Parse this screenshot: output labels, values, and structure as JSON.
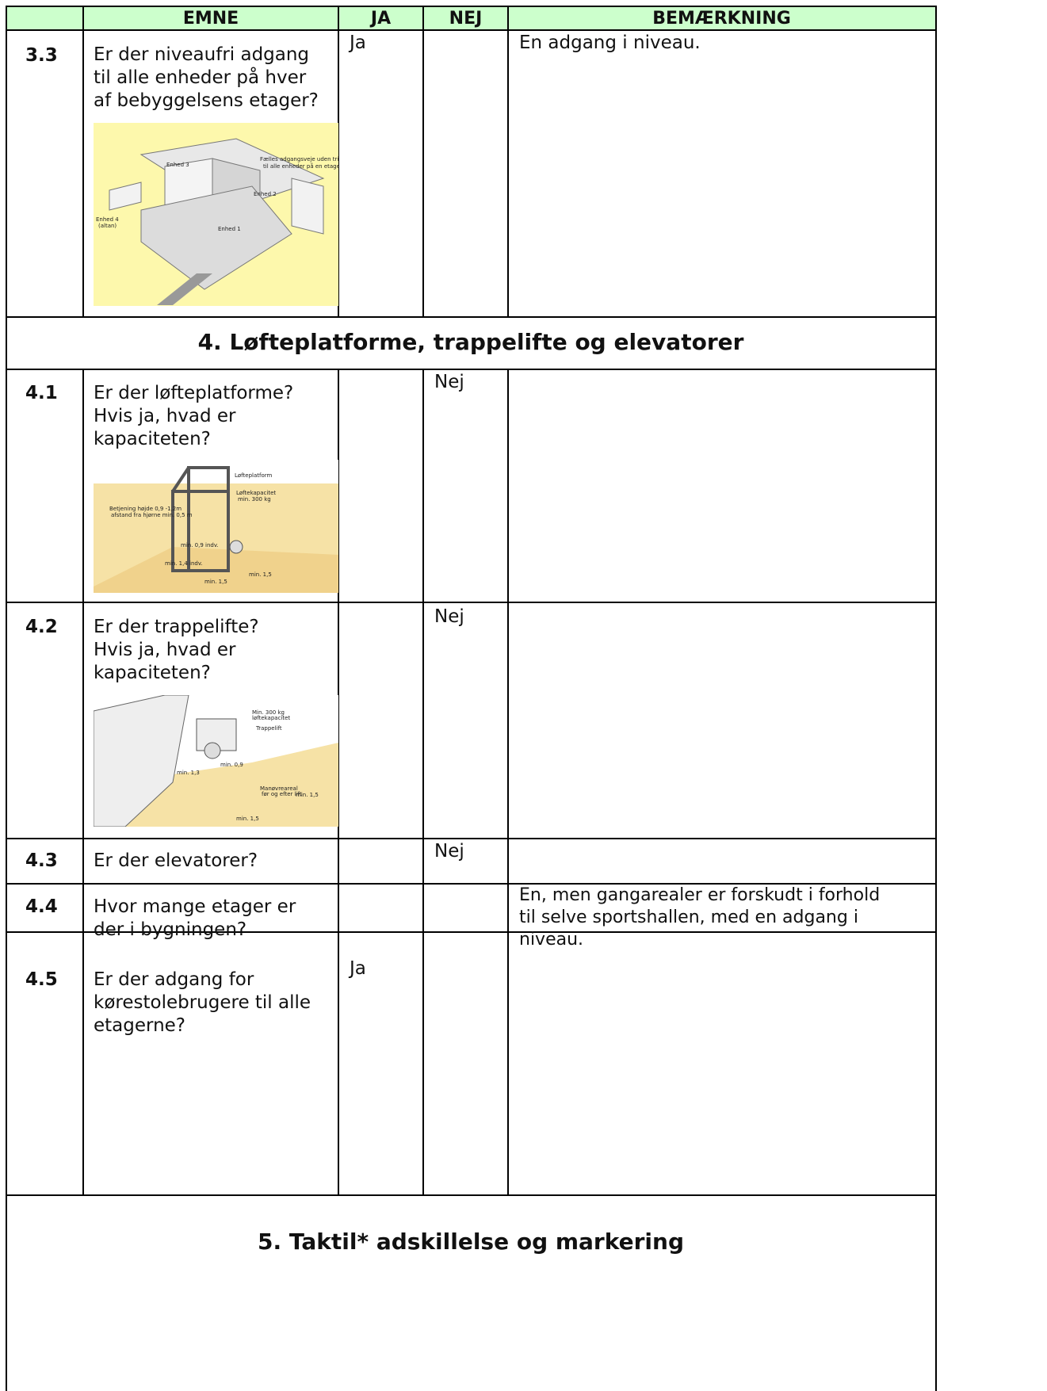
{
  "table": {
    "headers": {
      "emne": "EMNE",
      "ja": "JA",
      "nej": "NEJ",
      "bemaerkning": "BEMÆRKNING"
    },
    "rows": [
      {
        "id": "3.3",
        "question": "Er der niveaufri adgang\ntil alle enheder på hver\naf bebyggelsens etager?",
        "ja": "Ja",
        "bemaerkning": "En adgang i niveau.",
        "figure_labels": [
          "Enhed 3",
          "Fælles adgangsveje uden trin",
          "til alle enheder på en etage",
          "Enhed 2",
          "Enhed 4",
          "(altan)",
          "Enhed 1"
        ]
      },
      {
        "section": "4. Løfteplatforme, trappelifte og elevatorer"
      },
      {
        "id": "4.1",
        "question": "Er der løfteplatforme?\nHvis ja, hvad er\nkapaciteten?",
        "nej": "Nej",
        "figure_labels": [
          "Løfteplatform",
          "Løftekapacitet",
          "min. 300 kg",
          "Betjening højde 0,9 -1,2m",
          "afstand fra hjørne min. 0,5 m",
          "min. 0,9 indv.",
          "min. 1,4 indv.",
          "min. 1,5",
          "min. 1,5"
        ]
      },
      {
        "id": "4.2",
        "question": "Er der trappelifte?\nHvis ja, hvad er\nkapaciteten?",
        "nej": "Nej",
        "figure_labels": [
          "Min. 300 kg",
          "løftekapacitet",
          "Trappelift",
          "min. 1,3",
          "min. 0,9",
          "Manøvreareal",
          "før og efter lift",
          "min. 1,5",
          "min. 1,5"
        ]
      },
      {
        "id": "4.3",
        "question": "Er der elevatorer?",
        "nej": "Nej"
      },
      {
        "id": "4.4",
        "question": "Hvor mange etager er\nder i bygningen?",
        "bemaerkning": "En, men gangarealer er forskudt i forhold\ntil selve sportshallen, med en adgang i\nniveau."
      },
      {
        "id": "4.5",
        "question": "Er der adgang for\nkørestolebrugere til alle\netagerne?",
        "ja": "Ja"
      },
      {
        "section": "5. Taktil* adskillelse og markering"
      }
    ]
  }
}
